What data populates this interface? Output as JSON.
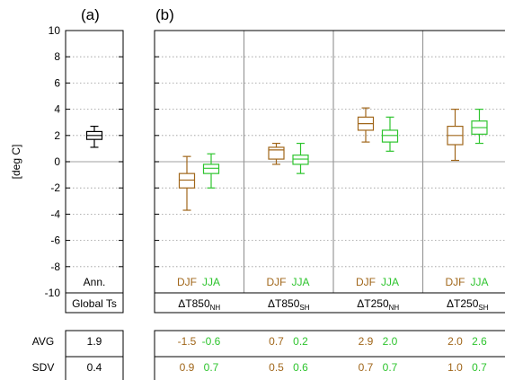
{
  "colors": {
    "djf": "#a0661a",
    "jja": "#2ec42e",
    "annual": "#000000",
    "zero_line": "#b3b3b3",
    "grid": "#999999",
    "divider": "#999999"
  },
  "panel_labels": {
    "a": "(a)",
    "b": "(b)"
  },
  "ylabel": "[deg C]",
  "row_labels": {
    "avg": "AVG",
    "sdv": "SDV"
  },
  "season_labels": {
    "djf": "DJF",
    "jja": "JJA"
  },
  "chart_data": [
    {
      "type": "box",
      "panel": "(a)",
      "ylabel": "[deg C]",
      "ylim": [
        -10,
        10
      ],
      "yticks": [
        "10",
        "8",
        "6",
        "4",
        "2",
        "0",
        "-2",
        "-4",
        "-6",
        "-8",
        "-10"
      ],
      "grid": "horizontal dotted",
      "category": "Global Ts",
      "inner_label": "Ann.",
      "box": {
        "min": 1.1,
        "q1": 1.7,
        "median": 2.0,
        "q3": 2.3,
        "max": 2.7
      },
      "stats": {
        "avg": "1.9",
        "sdv": "0.4"
      }
    },
    {
      "type": "box",
      "panel": "(b)",
      "ylim": [
        -10,
        10
      ],
      "grid": "horizontal dotted",
      "groups": [
        {
          "label": "ΔT850",
          "sub": "NH",
          "djf": {
            "min": -3.7,
            "q1": -2.0,
            "median": -1.4,
            "q3": -0.9,
            "max": 0.4
          },
          "jja": {
            "min": -2.0,
            "q1": -0.9,
            "median": -0.5,
            "q3": -0.2,
            "max": 0.6
          },
          "stats": {
            "avg": [
              "-1.5",
              "-0.6"
            ],
            "sdv": [
              "0.9",
              "0.7"
            ]
          }
        },
        {
          "label": "ΔT850",
          "sub": "SH",
          "djf": {
            "min": -0.2,
            "q1": 0.2,
            "median": 0.9,
            "q3": 1.1,
            "max": 1.4
          },
          "jja": {
            "min": -0.9,
            "q1": -0.2,
            "median": 0.2,
            "q3": 0.5,
            "max": 1.4
          },
          "stats": {
            "avg": [
              "0.7",
              "0.2"
            ],
            "sdv": [
              "0.5",
              "0.6"
            ]
          }
        },
        {
          "label": "ΔT250",
          "sub": "NH",
          "djf": {
            "min": 1.5,
            "q1": 2.4,
            "median": 2.9,
            "q3": 3.4,
            "max": 4.1
          },
          "jja": {
            "min": 0.8,
            "q1": 1.5,
            "median": 2.0,
            "q3": 2.4,
            "max": 3.4
          },
          "stats": {
            "avg": [
              "2.9",
              "2.0"
            ],
            "sdv": [
              "0.7",
              "0.7"
            ]
          }
        },
        {
          "label": "ΔT250",
          "sub": "SH",
          "djf": {
            "min": 0.1,
            "q1": 1.3,
            "median": 2.0,
            "q3": 2.7,
            "max": 4.0
          },
          "jja": {
            "min": 1.4,
            "q1": 2.1,
            "median": 2.6,
            "q3": 3.1,
            "max": 4.0
          },
          "stats": {
            "avg": [
              "2.0",
              "2.6"
            ],
            "sdv": [
              "1.0",
              "0.7"
            ]
          }
        }
      ]
    }
  ]
}
